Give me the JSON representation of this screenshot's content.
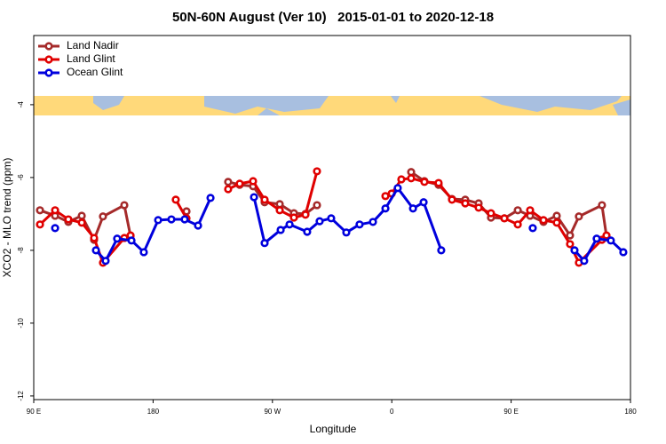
{
  "chart_data": {
    "type": "line",
    "title": "50N-60N August (Ver 10)   2015-01-01 to 2020-12-18",
    "x_label": "Longitude",
    "y_label": "XCO2 - MLO trend (ppm)",
    "xlim": [
      90,
      540
    ],
    "ylim": [
      -12.1,
      -2.1
    ],
    "xticks": [
      {
        "value": 90,
        "label": "90 E"
      },
      180,
      {
        "value": 270,
        "label": "90 W"
      },
      {
        "value": 360,
        "label": "0"
      },
      {
        "value": 450,
        "label": "90 E"
      },
      180
    ],
    "yticks": [
      -4,
      -6,
      -8,
      -10,
      -12
    ],
    "legend": "top-left",
    "series": [
      {
        "name": "Land Nadir",
        "color": "#a52a2a",
        "x": [
          94.7,
          106.1,
          116.1,
          126.2,
          135.5,
          142.2,
          158.3,
          163.0,
          null,
          205.2,
          null,
          236.6,
          245.3,
          255.4,
          264.1,
          275.5,
          286.2,
          294.9,
          303.6,
          null,
          374.6,
          384.6,
          395.3,
          405.4,
          415.4,
          425.5,
          434.8,
          444.9,
          455.0,
          464.3,
          474.4,
          484.4,
          494.4,
          501.1,
          518.5,
          521.9
        ],
        "values": [
          -6.9,
          -7.05,
          -7.22,
          -7.05,
          -7.71,
          -7.07,
          -6.76,
          -7.61,
          null,
          -6.93,
          null,
          -6.12,
          -6.2,
          -6.24,
          -6.68,
          -6.73,
          -6.98,
          -7.0,
          -6.76,
          null,
          -5.85,
          -6.1,
          -6.2,
          -6.59,
          -6.61,
          -6.71,
          -7.1,
          -7.12,
          -6.9,
          -7.05,
          -7.22,
          -7.05,
          -7.59,
          -7.07,
          -6.76,
          -7.61
        ]
      },
      {
        "name": "Land Glint",
        "color": "#e00000",
        "x": [
          94.7,
          106.1,
          116.1,
          126.2,
          135.5,
          142.2,
          158.3,
          163.0,
          null,
          197.1,
          205.2,
          null,
          236.6,
          245.3,
          255.4,
          264.1,
          275.5,
          286.2,
          294.9,
          303.6,
          null,
          355.2,
          359.9,
          367.2,
          374.6,
          384.6,
          395.3,
          405.4,
          415.4,
          425.5,
          434.8,
          444.9,
          455.0,
          464.3,
          474.4,
          484.4,
          494.4,
          501.1,
          518.5,
          521.9
        ],
        "values": [
          -7.29,
          -6.9,
          -7.15,
          -7.24,
          -7.66,
          -8.34,
          -7.66,
          -7.59,
          null,
          -6.61,
          -7.12,
          null,
          -6.32,
          -6.17,
          -6.1,
          -6.61,
          -6.9,
          -7.1,
          -7.02,
          -5.83,
          null,
          -6.51,
          -6.44,
          -6.05,
          -6.02,
          -6.12,
          -6.15,
          -6.61,
          -6.71,
          -6.83,
          -6.98,
          -7.12,
          -7.29,
          -6.9,
          -7.17,
          -7.24,
          -7.83,
          -8.34,
          -7.71,
          -7.59
        ]
      },
      {
        "name": "Ocean Glint",
        "color": "#0000dd",
        "x": [
          106.1,
          null,
          136.9,
          144.2,
          152.9,
          163.7,
          173.0,
          183.8,
          193.8,
          203.8,
          213.9,
          223.3,
          null,
          256.1,
          264.1,
          276.2,
          282.9,
          296.2,
          305.6,
          314.3,
          325.7,
          335.7,
          345.8,
          355.2,
          364.5,
          376.0,
          384.0,
          397.3,
          null,
          466.3,
          null,
          497.8,
          505.1,
          514.5,
          525.2,
          534.6
        ],
        "values": [
          -7.39,
          null,
          -8.0,
          -8.29,
          -7.68,
          -7.73,
          -8.05,
          -7.17,
          -7.15,
          -7.15,
          -7.32,
          -6.56,
          null,
          -6.54,
          -7.8,
          -7.44,
          -7.29,
          -7.49,
          -7.2,
          -7.12,
          -7.51,
          -7.29,
          -7.22,
          -6.85,
          -6.29,
          -6.85,
          -6.68,
          -8.0,
          null,
          -7.39,
          null,
          -8.0,
          -8.29,
          -7.68,
          -7.73,
          -8.05
        ]
      }
    ]
  }
}
